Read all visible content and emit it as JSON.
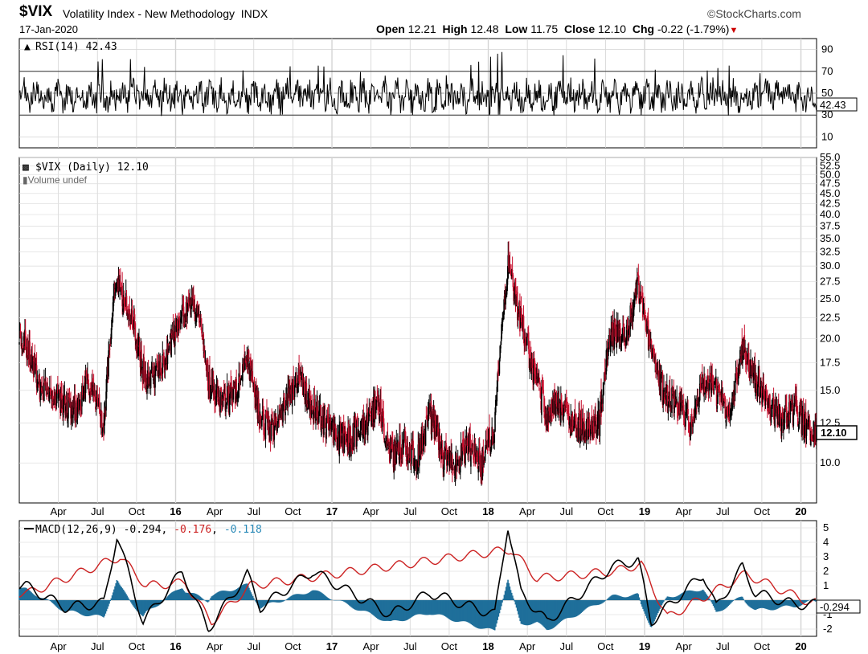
{
  "header": {
    "symbol": "$VIX",
    "name": "Volatility Index - New Methodology",
    "exchange": "INDX",
    "source": "StockCharts.com",
    "date": "17-Jan-2020",
    "open_label": "Open",
    "open": "12.21",
    "high_label": "High",
    "high": "12.48",
    "low_label": "Low",
    "low": "11.75",
    "close_label": "Close",
    "close": "12.10",
    "chg_label": "Chg",
    "chg": "-0.22 (-1.79%)"
  },
  "colors": {
    "up": "#000000",
    "down": "#c8102e",
    "signal": "#cc2222",
    "hist": "#1f6f9a"
  },
  "chart_data": [
    {
      "type": "line",
      "title": "RSI(14) 42.43",
      "indicator": "RSI(14)",
      "last": "42.43",
      "ylim": [
        0,
        100
      ],
      "ticks": [
        "90",
        "70",
        "50",
        "30",
        "10"
      ],
      "reference_lines": [
        70,
        30
      ],
      "series": [
        {
          "x": [
            "2015-01",
            "2015-08",
            "2016-01",
            "2016-06",
            "2016-11",
            "2017-08",
            "2018-02",
            "2018-10",
            "2018-12",
            "2019-05",
            "2019-08",
            "2020-01"
          ],
          "values": [
            45,
            88,
            55,
            72,
            76,
            60,
            90,
            80,
            72,
            70,
            78,
            42.43
          ]
        }
      ]
    },
    {
      "type": "candlestick",
      "title": "$VIX (Daily) 12.10",
      "legend_sub": "Volume undef",
      "last_value": "12.10",
      "y_scale": "log",
      "ylim": [
        8,
        55
      ],
      "y_ticks": [
        "55.0",
        "52.5",
        "50.0",
        "47.5",
        "45.0",
        "42.5",
        "40.0",
        "37.5",
        "35.0",
        "32.5",
        "30.0",
        "27.5",
        "25.0",
        "22.5",
        "20.0",
        "17.5",
        "15.0",
        "12.5",
        "10.0"
      ],
      "x_labels": [
        "Apr",
        "Jul",
        "Oct",
        "16",
        "Apr",
        "Jul",
        "Oct",
        "17",
        "Apr",
        "Jul",
        "Oct",
        "18",
        "Apr",
        "Jul",
        "Oct",
        "19",
        "Apr",
        "Jul",
        "Oct",
        "20"
      ],
      "series": [
        {
          "name": "$VIX (Daily)",
          "x": [
            "2015-01",
            "2015-02",
            "2015-03",
            "2015-04",
            "2015-05",
            "2015-06",
            "2015-07",
            "2015-08",
            "2015-09",
            "2015-10",
            "2015-11",
            "2015-12",
            "2016-01",
            "2016-02",
            "2016-03",
            "2016-04",
            "2016-05",
            "2016-06",
            "2016-07",
            "2016-08",
            "2016-09",
            "2016-10",
            "2016-11",
            "2016-12",
            "2017-01",
            "2017-02",
            "2017-03",
            "2017-04",
            "2017-05",
            "2017-06",
            "2017-07",
            "2017-08",
            "2017-09",
            "2017-10",
            "2017-11",
            "2017-12",
            "2018-01",
            "2018-02",
            "2018-03",
            "2018-04",
            "2018-05",
            "2018-06",
            "2018-07",
            "2018-08",
            "2018-09",
            "2018-10",
            "2018-11",
            "2018-12",
            "2019-01",
            "2019-02",
            "2019-03",
            "2019-04",
            "2019-05",
            "2019-06",
            "2019-07",
            "2019-08",
            "2019-09",
            "2019-10",
            "2019-11",
            "2019-12",
            "2020-01"
          ],
          "values": [
            19.5,
            15.5,
            14.5,
            13.8,
            13.5,
            16,
            12.2,
            28,
            23,
            16.5,
            16,
            19,
            23,
            24,
            15.5,
            14,
            14.5,
            18,
            12.5,
            12,
            14,
            16,
            13.5,
            12.5,
            11.5,
            11.5,
            12.5,
            14,
            10.5,
            11,
            10,
            13,
            10.5,
            10,
            11,
            10,
            12,
            30,
            22,
            16.5,
            13,
            14,
            12.5,
            12,
            12.5,
            21,
            19.5,
            27,
            18.5,
            14.5,
            14,
            12.5,
            15.5,
            15,
            13,
            19,
            16,
            14,
            12.5,
            13.5,
            12.1
          ]
        }
      ]
    },
    {
      "type": "line",
      "title": "MACD(12,26,9) -0.294, -0.176, -0.118",
      "indicator": "MACD(12,26,9)",
      "macd_label": "-0.294",
      "signal_label": "-0.176",
      "hist_label": "-0.118",
      "last": "-0.294",
      "ylim": [
        -2.5,
        5.5
      ],
      "ticks": [
        "5",
        "4",
        "3",
        "2",
        "1",
        "-1",
        "-2"
      ],
      "series": [
        {
          "name": "MACD",
          "x": [
            "2015-01",
            "2015-04",
            "2015-07",
            "2015-08",
            "2015-09",
            "2015-10",
            "2016-01",
            "2016-03",
            "2016-06",
            "2016-07",
            "2016-11",
            "2017-05",
            "2017-08",
            "2018-01",
            "2018-02",
            "2018-03",
            "2018-05",
            "2018-10",
            "2018-12",
            "2019-01",
            "2019-05",
            "2019-06",
            "2019-08",
            "2019-09",
            "2019-12",
            "2020-01"
          ],
          "values": [
            1,
            -0.5,
            -0.2,
            4.5,
            1.5,
            -1.5,
            2,
            -2,
            1.8,
            -0.5,
            2,
            -1,
            0.5,
            -1,
            5.2,
            0.5,
            -1.5,
            2.3,
            2.8,
            -1.5,
            1.8,
            -0.5,
            2.3,
            0.5,
            -0.3,
            -0.294
          ]
        },
        {
          "name": "Signal",
          "x": [
            "2015-01",
            "2015-08",
            "2015-10",
            "2016-01",
            "2016-03",
            "2016-06",
            "2018-02",
            "2018-04",
            "2018-10",
            "2018-12",
            "2019-02",
            "2019-08",
            "2020-01"
          ],
          "values": [
            0.5,
            3,
            1,
            1.2,
            -1.5,
            1,
            3.5,
            1.5,
            2,
            2.5,
            -1.2,
            1.8,
            -0.176
          ]
        },
        {
          "name": "Histogram",
          "x": [
            "2015-08",
            "2018-02",
            "2018-03",
            "2018-12",
            "2019-01",
            "2020-01"
          ],
          "values": [
            1.5,
            1.5,
            -1,
            0.5,
            -0.8,
            -0.118
          ]
        }
      ]
    }
  ]
}
